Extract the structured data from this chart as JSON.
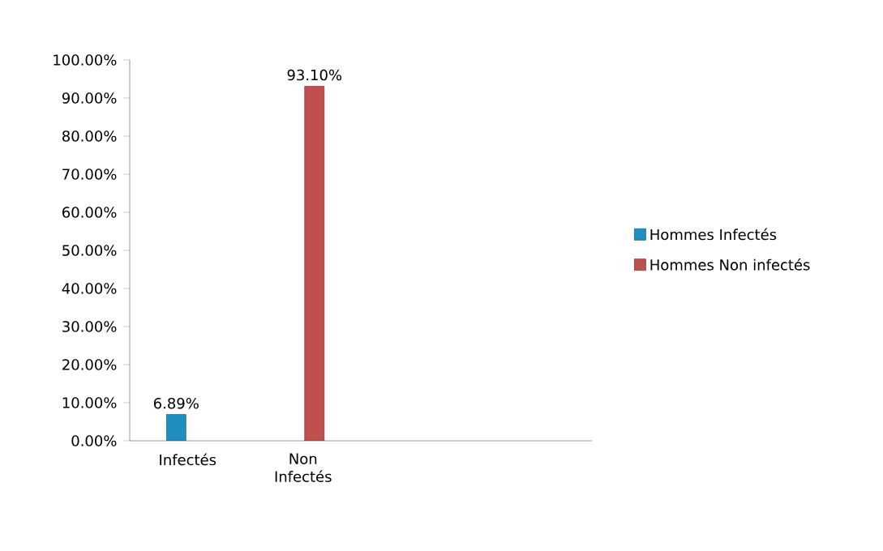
{
  "chart_data": {
    "type": "bar",
    "categories": [
      "Infectés",
      "Non Infectés",
      null,
      null
    ],
    "series": [
      {
        "name": "Hommes Infectés",
        "color": "#1f8fc0",
        "values": [
          6.89,
          null,
          null,
          null
        ],
        "value_labels": [
          "6.89%",
          null,
          null,
          null
        ]
      },
      {
        "name": "Hommes Non infectés",
        "color": "#c0504d",
        "values": [
          null,
          93.1,
          null,
          null
        ],
        "value_labels": [
          null,
          "93.10%",
          null,
          null
        ]
      }
    ],
    "ylim": [
      0,
      100
    ],
    "yticks": [
      {
        "value": 0,
        "label": "0.00%"
      },
      {
        "value": 10,
        "label": "10.00%"
      },
      {
        "value": 20,
        "label": "20.00%"
      },
      {
        "value": 30,
        "label": "30.00%"
      },
      {
        "value": 40,
        "label": "40.00%"
      },
      {
        "value": 50,
        "label": "50.00%"
      },
      {
        "value": 60,
        "label": "60.00%"
      },
      {
        "value": 70,
        "label": "70.00%"
      },
      {
        "value": 80,
        "label": "80.00%"
      },
      {
        "value": 90,
        "label": "90.00%"
      },
      {
        "value": 100,
        "label": "100.00%"
      }
    ],
    "legend": "right"
  }
}
